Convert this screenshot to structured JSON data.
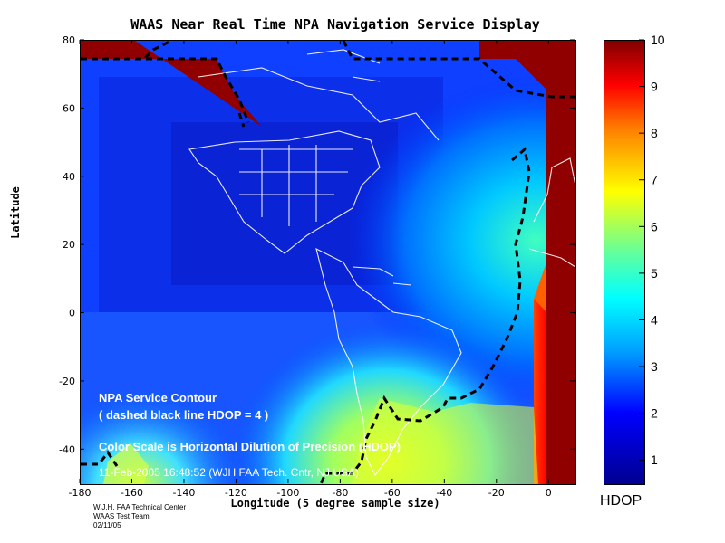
{
  "chart_data": {
    "type": "heatmap",
    "title": "WAAS Near Real Time NPA Navigation Service Display",
    "xlabel": "Longitude (5 degree sample size)",
    "ylabel": "Latitude",
    "xlim": [
      -180,
      10
    ],
    "ylim": [
      -50,
      80
    ],
    "x_ticks": [
      -180,
      -160,
      -140,
      -120,
      -100,
      -80,
      -60,
      -40,
      -20,
      0
    ],
    "y_ticks": [
      -40,
      -20,
      0,
      20,
      40,
      60,
      80
    ],
    "colorbar": {
      "label": "HDOP",
      "range": [
        0.5,
        10
      ],
      "ticks": [
        1,
        2,
        3,
        4,
        5,
        6,
        7,
        8,
        9,
        10
      ],
      "colormap": "jet"
    },
    "contour": {
      "level": 4,
      "style": "dashed",
      "color": "#000000"
    },
    "annotations": [
      "NPA Service Contour",
      "( dashed black line HDOP = 4 )",
      "Color Scale is Horizontal Dilution of Precision (HDOP)",
      "11-Feb-2005 16:48:52  (WJH FAA Tech. Cntr,  NJ USA)"
    ],
    "credits": [
      "W.J.H. FAA Technical Center",
      "WAAS Test Team",
      "02/11/05"
    ],
    "hdop_regions": [
      {
        "lon": [
          -180,
          -60
        ],
        "lat": [
          -20,
          70
        ],
        "hdop": 1.5
      },
      {
        "lon": [
          -20,
          -5
        ],
        "lat": [
          -30,
          45
        ],
        "hdop": 3.5
      },
      {
        "lon": [
          -70,
          -40
        ],
        "lat": [
          -50,
          -35
        ],
        "hdop": 5.5
      },
      {
        "lon": [
          -5,
          10
        ],
        "lat": [
          -50,
          80
        ],
        "hdop": 10
      },
      {
        "lon": [
          -160,
          -90
        ],
        "lat": [
          68,
          80
        ],
        "hdop": 10
      }
    ]
  }
}
